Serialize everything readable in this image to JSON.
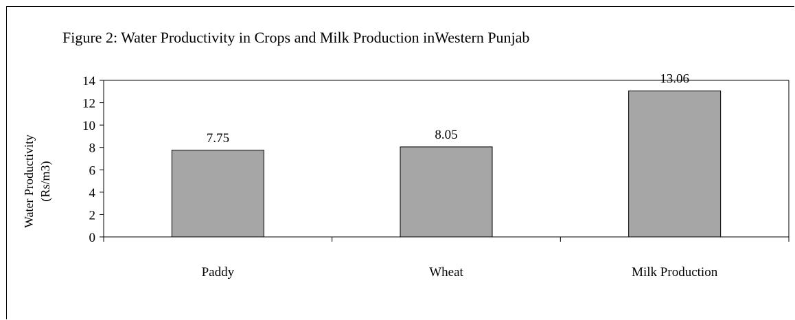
{
  "chart_data": {
    "type": "bar",
    "title": "Figure 2: Water Productivity in Crops and Milk Production inWestern Punjab",
    "ylabel_lines": [
      "Water Productivity",
      "(Rs/m3)"
    ],
    "categories": [
      "Paddy",
      "Wheat",
      "Milk Production"
    ],
    "values": [
      7.75,
      8.05,
      13.06
    ],
    "value_labels": [
      "7.75",
      "8.05",
      "13.06"
    ],
    "ylim": [
      0,
      14
    ],
    "yticks": [
      0,
      2,
      4,
      6,
      8,
      10,
      12,
      14
    ],
    "bar_color": "#a6a6a6",
    "grid": false,
    "legend": "none"
  }
}
